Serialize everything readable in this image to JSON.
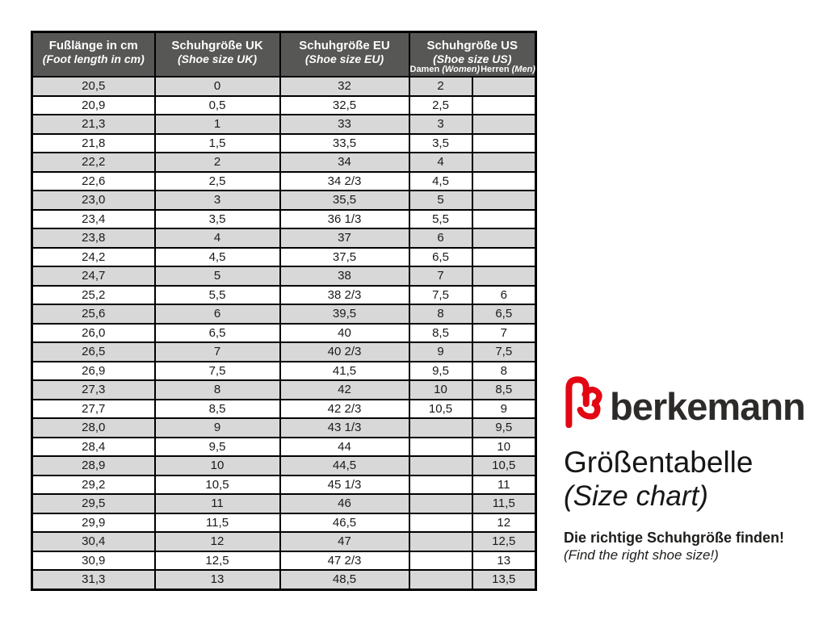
{
  "table": {
    "headers": [
      {
        "title": "Fußlänge in cm",
        "subtitle": "(Foot length in cm)"
      },
      {
        "title": "Schuhgröße UK",
        "subtitle": "(Shoe size UK)"
      },
      {
        "title": "Schuhgröße EU",
        "subtitle": "(Shoe size EU)"
      },
      {
        "title": "Schuhgröße US",
        "subtitle": "(Shoe size US)",
        "sub_columns": [
          {
            "name": "Damen",
            "name_en": "(Women)"
          },
          {
            "name": "Herren",
            "name_en": "(Men)"
          }
        ]
      }
    ],
    "rows": [
      [
        "20,5",
        "0",
        "32",
        "2",
        ""
      ],
      [
        "20,9",
        "0,5",
        "32,5",
        "2,5",
        ""
      ],
      [
        "21,3",
        "1",
        "33",
        "3",
        ""
      ],
      [
        "21,8",
        "1,5",
        "33,5",
        "3,5",
        ""
      ],
      [
        "22,2",
        "2",
        "34",
        "4",
        ""
      ],
      [
        "22,6",
        "2,5",
        "34 2/3",
        "4,5",
        ""
      ],
      [
        "23,0",
        "3",
        "35,5",
        "5",
        ""
      ],
      [
        "23,4",
        "3,5",
        "36 1/3",
        "5,5",
        ""
      ],
      [
        "23,8",
        "4",
        "37",
        "6",
        ""
      ],
      [
        "24,2",
        "4,5",
        "37,5",
        "6,5",
        ""
      ],
      [
        "24,7",
        "5",
        "38",
        "7",
        ""
      ],
      [
        "25,2",
        "5,5",
        "38 2/3",
        "7,5",
        "6"
      ],
      [
        "25,6",
        "6",
        "39,5",
        "8",
        "6,5"
      ],
      [
        "26,0",
        "6,5",
        "40",
        "8,5",
        "7"
      ],
      [
        "26,5",
        "7",
        "40 2/3",
        "9",
        "7,5"
      ],
      [
        "26,9",
        "7,5",
        "41,5",
        "9,5",
        "8"
      ],
      [
        "27,3",
        "8",
        "42",
        "10",
        "8,5"
      ],
      [
        "27,7",
        "8,5",
        "42 2/3",
        "10,5",
        "9"
      ],
      [
        "28,0",
        "9",
        "43 1/3",
        "",
        "9,5"
      ],
      [
        "28,4",
        "9,5",
        "44",
        "",
        "10"
      ],
      [
        "28,9",
        "10",
        "44,5",
        "",
        "10,5"
      ],
      [
        "29,2",
        "10,5",
        "45 1/3",
        "",
        "11"
      ],
      [
        "29,5",
        "11",
        "46",
        "",
        "11,5"
      ],
      [
        "29,9",
        "11,5",
        "46,5",
        "",
        "12"
      ],
      [
        "30,4",
        "12",
        "47",
        "",
        "12,5"
      ],
      [
        "30,9",
        "12,5",
        "47 2/3",
        "",
        "13"
      ],
      [
        "31,3",
        "13",
        "48,5",
        "",
        "13,5"
      ]
    ]
  },
  "branding": {
    "logo_icon": "berkemann-heart-b-logo",
    "brand_name": "berkemann",
    "title": "Größentabelle",
    "title_en": "(Size chart)",
    "tagline": "Die richtige Schuhgröße finden!",
    "tagline_en": "(Find the right shoe size!)"
  },
  "colors": {
    "header_background": "#575756",
    "header_text": "#ffffff",
    "row_stripe": "#d8d8d8",
    "row_plain": "#ffffff",
    "border": "#000000",
    "logo_red": "#e30613",
    "brand_text": "#2d2b2a"
  }
}
